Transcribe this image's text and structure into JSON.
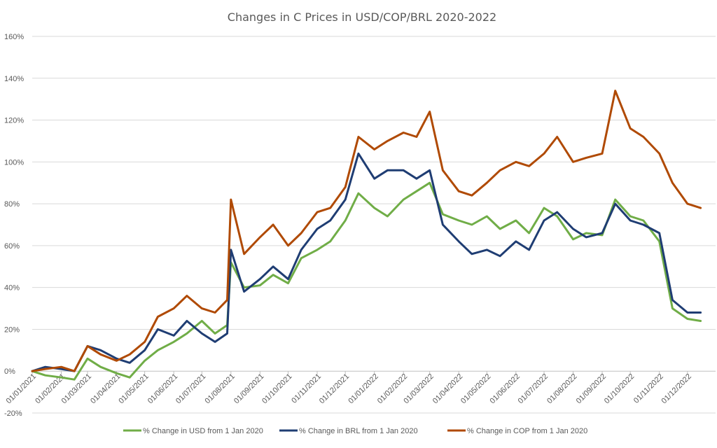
{
  "chart_data": {
    "type": "line",
    "title": "Changes in C Prices in USD/COP/BRL 2020-2022",
    "xlabel": "",
    "ylabel": "",
    "ylim": [
      -20,
      160
    ],
    "y_ticks": [
      -20,
      0,
      20,
      40,
      60,
      80,
      100,
      120,
      140,
      160
    ],
    "y_tick_labels": [
      "-20%",
      "0%",
      "20%",
      "40%",
      "60%",
      "80%",
      "100%",
      "120%",
      "140%",
      "160%"
    ],
    "x_tick_labels": [
      "01/01/2021",
      "01/02/2021",
      "01/03/2021",
      "01/04/2021",
      "01/05/2021",
      "01/06/2021",
      "01/07/2021",
      "01/08/2021",
      "01/09/2021",
      "01/10/2021",
      "01/11/2021",
      "01/12/2021",
      "01/01/2022",
      "01/02/2022",
      "01/03/2022",
      "01/04/2022",
      "01/05/2022",
      "01/06/2022",
      "01/07/2022",
      "01/08/2022",
      "01/09/2022",
      "01/10/2022",
      "01/11/2022",
      "01/12/2022"
    ],
    "grid": true,
    "legend_position": "bottom",
    "x": [
      "01/01/2021",
      "15/01/2021",
      "01/02/2021",
      "15/02/2021",
      "01/03/2021",
      "15/03/2021",
      "01/04/2021",
      "15/04/2021",
      "01/05/2021",
      "15/05/2021",
      "01/06/2021",
      "15/06/2021",
      "01/07/2021",
      "15/07/2021",
      "28/07/2021",
      "01/08/2021",
      "15/08/2021",
      "01/09/2021",
      "15/09/2021",
      "01/10/2021",
      "15/10/2021",
      "01/11/2021",
      "15/11/2021",
      "01/12/2021",
      "15/12/2021",
      "01/01/2022",
      "15/01/2022",
      "01/02/2022",
      "15/02/2022",
      "01/03/2022",
      "15/03/2022",
      "01/04/2022",
      "15/04/2022",
      "01/05/2022",
      "15/05/2022",
      "01/06/2022",
      "15/06/2022",
      "01/07/2022",
      "15/07/2022",
      "01/08/2022",
      "15/08/2022",
      "01/09/2022",
      "15/09/2022",
      "01/10/2022",
      "15/10/2022",
      "01/11/2022",
      "15/11/2022",
      "01/12/2022",
      "15/12/2022"
    ],
    "series": [
      {
        "name": "% Change in USD from 1 Jan 2020",
        "color": "#70ad47",
        "values": [
          0,
          -2,
          -3,
          -4,
          6,
          2,
          -1,
          -3,
          5,
          10,
          14,
          18,
          24,
          18,
          22,
          52,
          40,
          41,
          46,
          42,
          54,
          58,
          62,
          72,
          85,
          78,
          74,
          82,
          86,
          90,
          75,
          72,
          70,
          74,
          68,
          72,
          66,
          78,
          74,
          63,
          66,
          65,
          82,
          74,
          72,
          62,
          30,
          25,
          24
        ]
      },
      {
        "name": "% Change in BRL from 1 Jan 2020",
        "color": "#1f3d73",
        "values": [
          0,
          2,
          1,
          0,
          12,
          10,
          6,
          4,
          10,
          20,
          17,
          24,
          18,
          14,
          18,
          58,
          38,
          44,
          50,
          44,
          58,
          68,
          72,
          82,
          104,
          92,
          96,
          96,
          92,
          96,
          70,
          62,
          56,
          58,
          55,
          62,
          58,
          72,
          76,
          68,
          64,
          66,
          80,
          72,
          70,
          66,
          34,
          28,
          28
        ]
      },
      {
        "name": "% Change in COP from 1 Jan 2020",
        "color": "#b04a04",
        "values": [
          0,
          1,
          2,
          0,
          12,
          8,
          5,
          8,
          14,
          26,
          30,
          36,
          30,
          28,
          34,
          82,
          56,
          64,
          70,
          60,
          66,
          76,
          78,
          88,
          112,
          106,
          110,
          114,
          112,
          124,
          96,
          86,
          84,
          90,
          96,
          100,
          98,
          104,
          112,
          100,
          102,
          104,
          134,
          116,
          112,
          104,
          90,
          80,
          78
        ]
      }
    ]
  }
}
